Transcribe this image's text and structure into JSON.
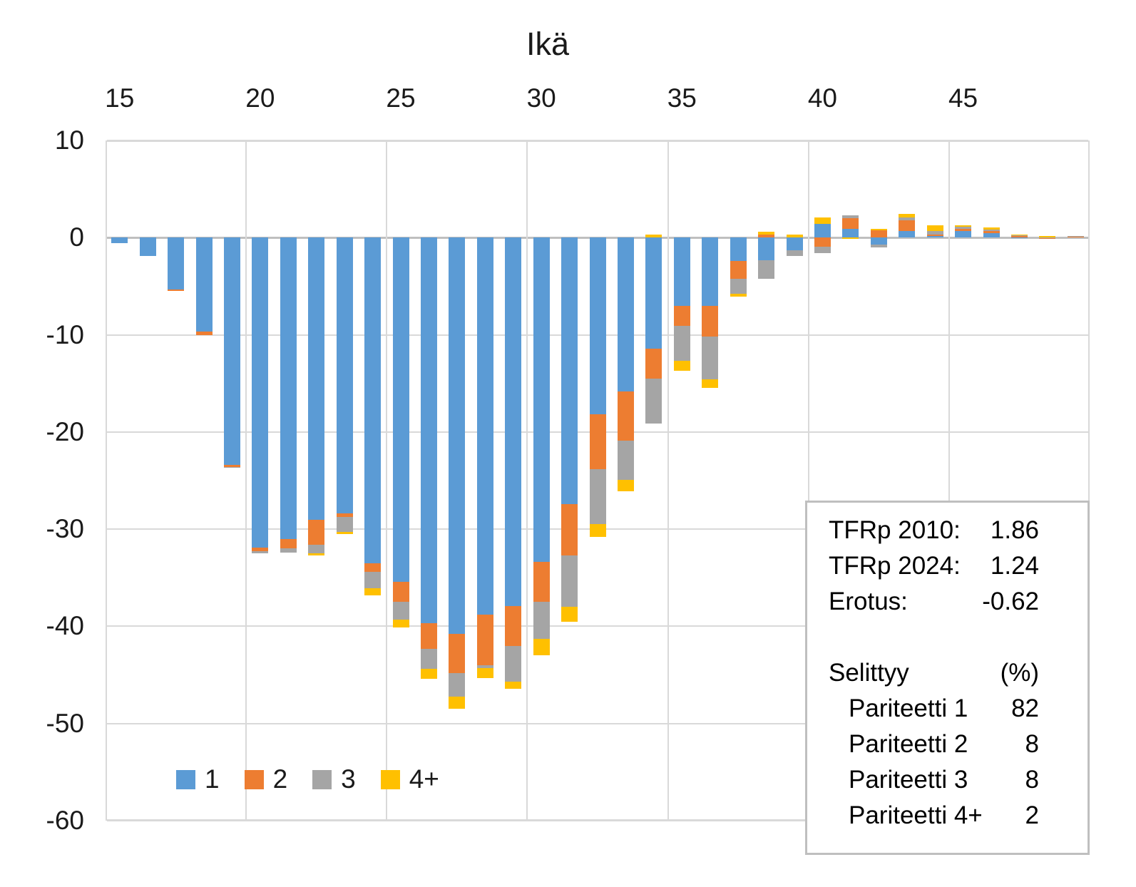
{
  "chart_data": {
    "type": "bar",
    "stacked": true,
    "title": "Ikä",
    "xlabel": "Ikä",
    "ylabel": "",
    "grid": true,
    "legend_position": "bottom-left-inside",
    "colors": {
      "gridline": "#D9D9D9",
      "zero_line": "#BFBFBF",
      "series_1": "#5B9BD5",
      "series_2": "#ED7D31",
      "series_3": "#A5A5A5",
      "series_4plus": "#FFC000"
    },
    "x_axis": {
      "tick_labels": [
        "15",
        "20",
        "25",
        "30",
        "35",
        "40",
        "45"
      ],
      "tick_ages": [
        15,
        20,
        25,
        30,
        35,
        40,
        45
      ]
    },
    "y_axis": {
      "tick_labels": [
        "10",
        "0",
        "-10",
        "-20",
        "-30",
        "-40",
        "-50",
        "-60"
      ],
      "tick_values": [
        10,
        0,
        -10,
        -20,
        -30,
        -40,
        -50,
        -60
      ],
      "min": -60,
      "max": 10
    },
    "ages": [
      15,
      16,
      17,
      18,
      19,
      20,
      21,
      22,
      23,
      24,
      25,
      26,
      27,
      28,
      29,
      30,
      31,
      32,
      33,
      34,
      35,
      36,
      37,
      38,
      39,
      40,
      41,
      42,
      43,
      44,
      45,
      46,
      47,
      48,
      49
    ],
    "series": [
      {
        "name": "1",
        "color": "#5B9BD5",
        "values": [
          -0.6,
          -1.9,
          -5.3,
          -9.7,
          -23.4,
          -31.9,
          -31.0,
          -29.0,
          -28.4,
          -33.5,
          -35.4,
          -39.7,
          -40.8,
          -38.8,
          -37.9,
          -33.4,
          -27.4,
          -18.2,
          -15.8,
          -11.4,
          -7.0,
          -7.0,
          -2.4,
          -2.3,
          -1.3,
          1.45,
          0.9,
          -0.7,
          0.65,
          0.2,
          0.7,
          0.45,
          0.05,
          0,
          0
        ]
      },
      {
        "name": "2",
        "color": "#ED7D31",
        "values": [
          0,
          0,
          -0.15,
          -0.3,
          -0.2,
          -0.4,
          -1.0,
          -2.6,
          -0.35,
          -0.9,
          -2.1,
          -2.6,
          -4.0,
          -5.2,
          -4.1,
          -4.1,
          -5.3,
          -5.6,
          -5.1,
          -3.1,
          -2.1,
          -3.2,
          -1.8,
          0.35,
          0,
          -0.95,
          1.1,
          0.8,
          1.1,
          0.1,
          0.2,
          0.3,
          0.2,
          -0.1,
          0.15
        ]
      },
      {
        "name": "3",
        "color": "#A5A5A5",
        "values": [
          0,
          0,
          0,
          0,
          -0.1,
          -0.2,
          -0.4,
          -0.9,
          -1.5,
          -1.7,
          -1.8,
          -2.1,
          -2.4,
          -0.3,
          -3.7,
          -3.8,
          -5.3,
          -5.7,
          -4.0,
          -4.6,
          -3.6,
          -4.4,
          -1.6,
          -1.95,
          -0.6,
          -0.65,
          0.3,
          -0.3,
          0.35,
          0.4,
          0.2,
          0.05,
          0.05,
          0.05,
          0.05
        ]
      },
      {
        "name": "4+",
        "color": "#FFC000",
        "values": [
          0,
          0,
          0,
          0,
          0,
          0,
          0,
          -0.2,
          -0.25,
          -0.7,
          -0.8,
          -1.0,
          -1.3,
          -1.0,
          -0.7,
          -1.7,
          -1.5,
          -1.3,
          -1.2,
          0.3,
          -1.0,
          -0.85,
          -0.3,
          0.25,
          0.35,
          0.6,
          -0.15,
          0.1,
          0.35,
          0.6,
          0.2,
          0.25,
          0.05,
          0.12,
          0
        ]
      }
    ]
  },
  "annotation_box": {
    "rows": [
      {
        "label": "TFRp 2010:",
        "value": "1.86",
        "indent": false
      },
      {
        "label": "TFRp 2024:",
        "value": "1.24",
        "indent": false
      },
      {
        "label": "Erotus:",
        "value": "-0.62",
        "indent": false
      },
      {
        "label": "",
        "value": "",
        "indent": false
      },
      {
        "label": "Selittyy",
        "value": "(%)",
        "indent": false
      },
      {
        "label": "Pariteetti 1",
        "value": "82",
        "indent": true
      },
      {
        "label": "Pariteetti 2",
        "value": "8",
        "indent": true
      },
      {
        "label": "Pariteetti 3",
        "value": "8",
        "indent": true
      },
      {
        "label": "Pariteetti 4+",
        "value": "2",
        "indent": true
      }
    ]
  }
}
